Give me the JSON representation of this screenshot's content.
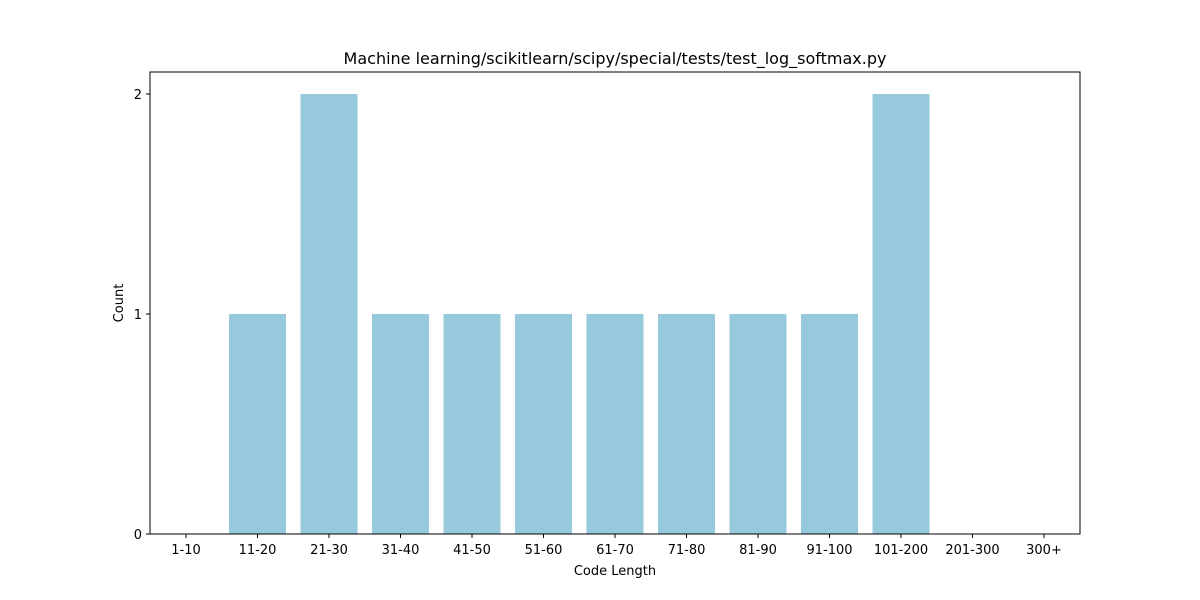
{
  "chart_data": {
    "type": "bar",
    "title": "Machine learning/scikitlearn/scipy/special/tests/test_log_softmax.py",
    "xlabel": "Code Length",
    "ylabel": "Count",
    "categories": [
      "1-10",
      "11-20",
      "21-30",
      "31-40",
      "41-50",
      "51-60",
      "61-70",
      "71-80",
      "81-90",
      "91-100",
      "101-200",
      "201-300",
      "300+"
    ],
    "values": [
      0,
      1,
      2,
      1,
      1,
      1,
      1,
      1,
      1,
      1,
      2,
      0,
      0
    ],
    "ylim": [
      0,
      2.1
    ],
    "yticks": [
      0,
      1,
      2
    ],
    "bar_color": "#96c9dc",
    "grid": false,
    "legend": "none"
  }
}
